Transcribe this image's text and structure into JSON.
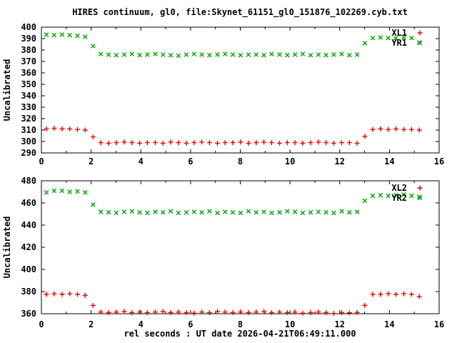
{
  "title": "HIRES continuum, gl0, file:Skynet_61151_gl0_151876_102269.cyb.txt",
  "xlabel": "rel seconds : UT date 2026-04-21T06:49:11.000",
  "colors": {
    "red": "#ee0000",
    "green": "#00a000",
    "text": "#000000",
    "background": "#ffffff"
  },
  "chart_data": [
    {
      "type": "scatter",
      "panel": "top",
      "ylabel": "Uncalibrated",
      "xlim": [
        0,
        16
      ],
      "ylim": [
        290,
        400
      ],
      "xticks": [
        0,
        2,
        4,
        6,
        8,
        10,
        12,
        14,
        16
      ],
      "x_minor_step": 1,
      "yticks": [
        290,
        300,
        310,
        320,
        330,
        340,
        350,
        360,
        370,
        380,
        390,
        400
      ],
      "grid": false,
      "legend_position": "top-right-inside",
      "legend": [
        {
          "label": "XL1",
          "marker": "plus",
          "color": "#ee0000"
        },
        {
          "label": "YR1",
          "marker": "cross",
          "color": "#00a000"
        }
      ],
      "x": [
        0.2,
        0.51,
        0.83,
        1.14,
        1.45,
        1.76,
        2.08,
        2.39,
        2.7,
        3.01,
        3.33,
        3.64,
        3.95,
        4.26,
        4.58,
        4.89,
        5.2,
        5.51,
        5.83,
        6.14,
        6.45,
        6.76,
        7.08,
        7.39,
        7.7,
        8.01,
        8.33,
        8.64,
        8.95,
        9.26,
        9.58,
        9.89,
        10.2,
        10.51,
        10.83,
        11.14,
        11.45,
        11.76,
        12.08,
        12.39,
        12.7,
        13.01,
        13.33,
        13.64,
        13.95,
        14.26,
        14.58,
        14.89,
        15.2
      ],
      "series": [
        {
          "name": "XL1",
          "marker": "plus",
          "color": "#ee0000",
          "y": [
            311,
            311.5,
            311,
            311,
            310.5,
            310,
            304,
            299,
            298.5,
            299,
            299.5,
            299,
            298.5,
            299,
            299,
            298.5,
            299.5,
            299,
            298.5,
            299,
            299.5,
            299,
            298.5,
            299,
            299,
            299.5,
            298.5,
            299,
            299.5,
            299,
            298.5,
            299,
            299,
            298.5,
            299,
            299.5,
            299,
            298.5,
            299,
            299,
            298.5,
            304.5,
            310.5,
            311,
            310.5,
            311,
            310.5,
            310.5,
            310
          ]
        },
        {
          "name": "YR1",
          "marker": "cross",
          "color": "#00a000",
          "y": [
            393.5,
            393,
            393.5,
            393,
            392.5,
            391.5,
            383.5,
            376.5,
            376,
            375.5,
            376,
            376.5,
            375.5,
            376,
            376.5,
            376,
            375.5,
            375,
            376,
            376.5,
            376,
            375.5,
            376,
            376.5,
            376,
            375.5,
            376,
            376,
            375.5,
            376.5,
            376,
            375.5,
            376,
            376.5,
            375.5,
            376,
            375.5,
            376,
            376.5,
            375.5,
            376,
            386,
            390.5,
            391,
            390.5,
            390.5,
            391,
            390.5,
            386.5
          ]
        }
      ]
    },
    {
      "type": "scatter",
      "panel": "bottom",
      "ylabel": "Uncalibrated",
      "xlim": [
        0,
        16
      ],
      "ylim": [
        360,
        480
      ],
      "xticks": [
        0,
        2,
        4,
        6,
        8,
        10,
        12,
        14,
        16
      ],
      "x_minor_step": 1,
      "yticks": [
        360,
        380,
        400,
        420,
        440,
        460,
        480
      ],
      "grid": false,
      "legend_position": "top-right-inside",
      "legend": [
        {
          "label": "XL2",
          "marker": "plus",
          "color": "#ee0000"
        },
        {
          "label": "YR2",
          "marker": "cross",
          "color": "#00a000"
        }
      ],
      "x": [
        0.2,
        0.51,
        0.83,
        1.14,
        1.45,
        1.76,
        2.08,
        2.39,
        2.7,
        3.01,
        3.33,
        3.64,
        3.95,
        4.26,
        4.58,
        4.89,
        5.2,
        5.51,
        5.83,
        6.14,
        6.45,
        6.76,
        7.08,
        7.39,
        7.7,
        8.01,
        8.33,
        8.64,
        8.95,
        9.26,
        9.58,
        9.89,
        10.2,
        10.51,
        10.83,
        11.14,
        11.45,
        11.76,
        12.08,
        12.39,
        12.7,
        13.01,
        13.33,
        13.64,
        13.95,
        14.26,
        14.58,
        14.89,
        15.2
      ],
      "series": [
        {
          "name": "XL2",
          "marker": "plus",
          "color": "#ee0000",
          "y": [
            377.5,
            378,
            377.5,
            378,
            377.5,
            376.5,
            367.5,
            361.5,
            361,
            361.5,
            362,
            361,
            361.5,
            361,
            361.5,
            362,
            361,
            361.5,
            361,
            360.5,
            361.5,
            361,
            362,
            361.5,
            361,
            361.5,
            361,
            361.5,
            362,
            361,
            361.5,
            361,
            361.5,
            360.5,
            361,
            361.5,
            361,
            360.3,
            361,
            360.8,
            361.2,
            367.5,
            377.5,
            377.5,
            378,
            377.5,
            378,
            377.5,
            375.5
          ]
        },
        {
          "name": "YR2",
          "marker": "cross",
          "color": "#00a000",
          "y": [
            469.5,
            471,
            471,
            470,
            470.5,
            469.5,
            458.5,
            452,
            451.5,
            451,
            452,
            452.5,
            451.5,
            451,
            452,
            451.5,
            452.5,
            451,
            451.5,
            452,
            451.5,
            452.5,
            451,
            452,
            451.5,
            451,
            452.5,
            451.5,
            452,
            451,
            451.5,
            452.5,
            452,
            451,
            451.5,
            452,
            451.5,
            451,
            452.5,
            451.5,
            452,
            462,
            466.5,
            467,
            466.5,
            467,
            467.5,
            466.5,
            465.5
          ]
        }
      ]
    }
  ]
}
